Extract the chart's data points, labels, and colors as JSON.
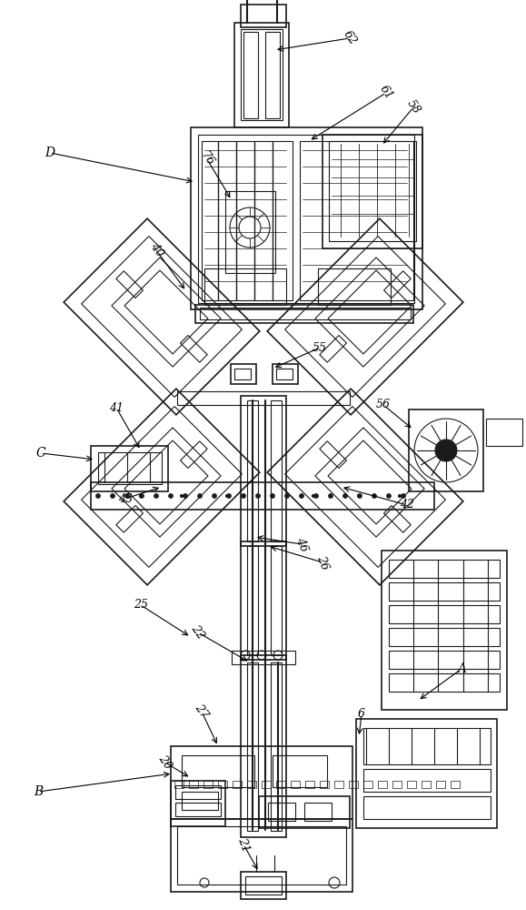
{
  "bg_color": "#ffffff",
  "line_color": "#1a1a1a",
  "figsize": [
    5.79,
    10.0
  ],
  "dpi": 100,
  "xlim": [
    0,
    579
  ],
  "ylim": [
    0,
    1000
  ]
}
